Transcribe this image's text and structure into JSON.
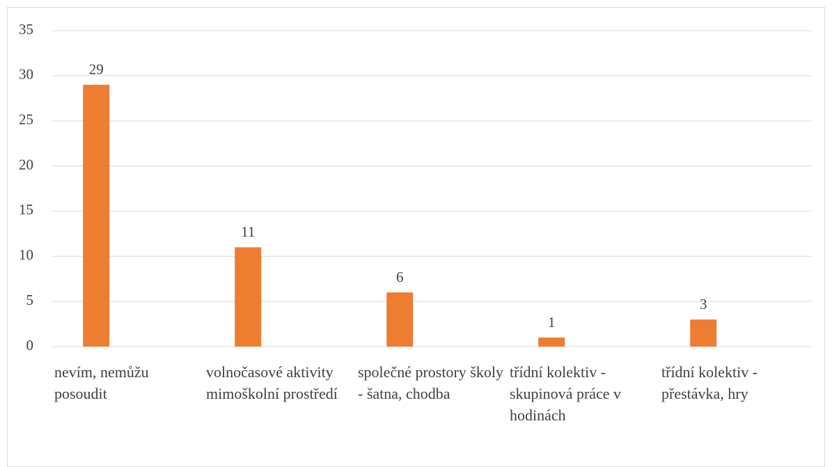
{
  "chart_data": {
    "type": "bar",
    "categories": [
      "nevím, nemůžu posoudit",
      "volnočasové aktivity mimoškolní prostředí",
      "společné prostory školy - šatna, chodba",
      "třídní kolektiv - skupinová práce v hodinách",
      "třídní kolektiv - přestávka, hry"
    ],
    "values": [
      29,
      11,
      6,
      1,
      3
    ],
    "color": "#ed7d31",
    "ylim": [
      0,
      35
    ],
    "yticks": [
      0,
      5,
      10,
      15,
      20,
      25,
      30,
      35
    ],
    "grid": true
  }
}
